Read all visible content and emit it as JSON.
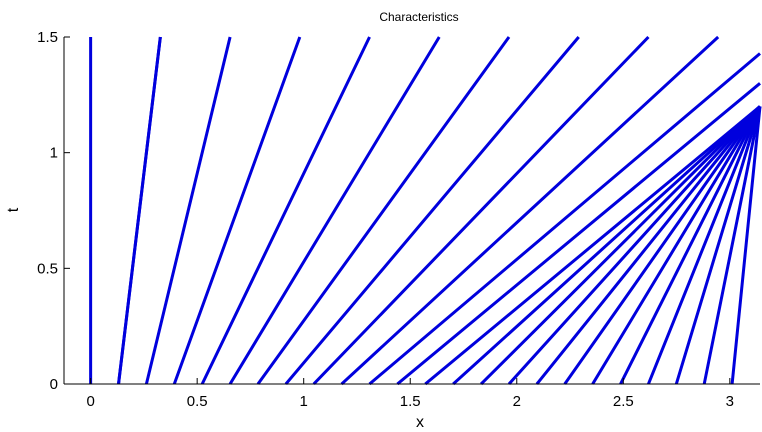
{
  "chart_data": {
    "type": "line",
    "title": "Characteristics",
    "xlabel": "x",
    "ylabel": "t",
    "xlim": [
      -0.125,
      3.1416
    ],
    "ylim": [
      0,
      1.5
    ],
    "x_ticks": [
      0,
      0.5,
      1,
      1.5,
      2,
      2.5,
      3
    ],
    "x_tick_labels": [
      "0",
      "0.5",
      "1",
      "1.5",
      "2",
      "2.5",
      "3"
    ],
    "y_ticks": [
      0,
      0.5,
      1,
      1.5
    ],
    "y_tick_labels": [
      "0",
      "0.5",
      "1",
      "1.5"
    ],
    "grid": false,
    "line_color": "#0000dd",
    "series": [
      {
        "x": [
          0.0,
          0.0
        ],
        "t": [
          0,
          1.5
        ]
      },
      {
        "x": [
          0.1309,
          0.3272
        ],
        "t": [
          0,
          1.5
        ]
      },
      {
        "x": [
          0.2618,
          0.6545
        ],
        "t": [
          0,
          1.5
        ]
      },
      {
        "x": [
          0.3927,
          0.9817
        ],
        "t": [
          0,
          1.5
        ]
      },
      {
        "x": [
          0.5236,
          1.309
        ],
        "t": [
          0,
          1.5
        ]
      },
      {
        "x": [
          0.6545,
          1.6362
        ],
        "t": [
          0,
          1.5
        ]
      },
      {
        "x": [
          0.7854,
          1.9635
        ],
        "t": [
          0,
          1.5
        ]
      },
      {
        "x": [
          0.9163,
          2.2907
        ],
        "t": [
          0,
          1.5
        ]
      },
      {
        "x": [
          1.0472,
          2.618
        ],
        "t": [
          0,
          1.5
        ]
      },
      {
        "x": [
          1.1781,
          2.9452
        ],
        "t": [
          0,
          1.5
        ]
      },
      {
        "x": [
          1.309,
          3.1416
        ],
        "t": [
          0,
          1.4287
        ]
      },
      {
        "x": [
          1.4399,
          3.1416
        ],
        "t": [
          0,
          1.2999
        ]
      },
      {
        "x": [
          1.5708,
          3.1416
        ],
        "t": [
          0,
          1.2
        ]
      },
      {
        "x": [
          1.7017,
          3.1416
        ],
        "t": [
          0,
          1.1999
        ]
      },
      {
        "x": [
          1.8326,
          3.1416
        ],
        "t": [
          0,
          1.2
        ]
      },
      {
        "x": [
          1.9635,
          3.1416
        ],
        "t": [
          0,
          1.2
        ]
      },
      {
        "x": [
          2.0944,
          3.1416
        ],
        "t": [
          0,
          1.2
        ]
      },
      {
        "x": [
          2.2253,
          3.1416
        ],
        "t": [
          0,
          1.2
        ]
      },
      {
        "x": [
          2.3562,
          3.1416
        ],
        "t": [
          0,
          1.2
        ]
      },
      {
        "x": [
          2.4871,
          3.1416
        ],
        "t": [
          0,
          1.2
        ]
      },
      {
        "x": [
          2.618,
          3.1416
        ],
        "t": [
          0,
          1.2
        ]
      },
      {
        "x": [
          2.7489,
          3.1416
        ],
        "t": [
          0,
          1.2
        ]
      },
      {
        "x": [
          2.8798,
          3.1416
        ],
        "t": [
          0,
          1.2
        ]
      },
      {
        "x": [
          3.0107,
          3.1416
        ],
        "t": [
          0,
          1.2
        ]
      },
      {
        "x": [
          0.1309,
          0.3272
        ],
        "t": [
          0,
          1.5
        ]
      }
    ]
  }
}
